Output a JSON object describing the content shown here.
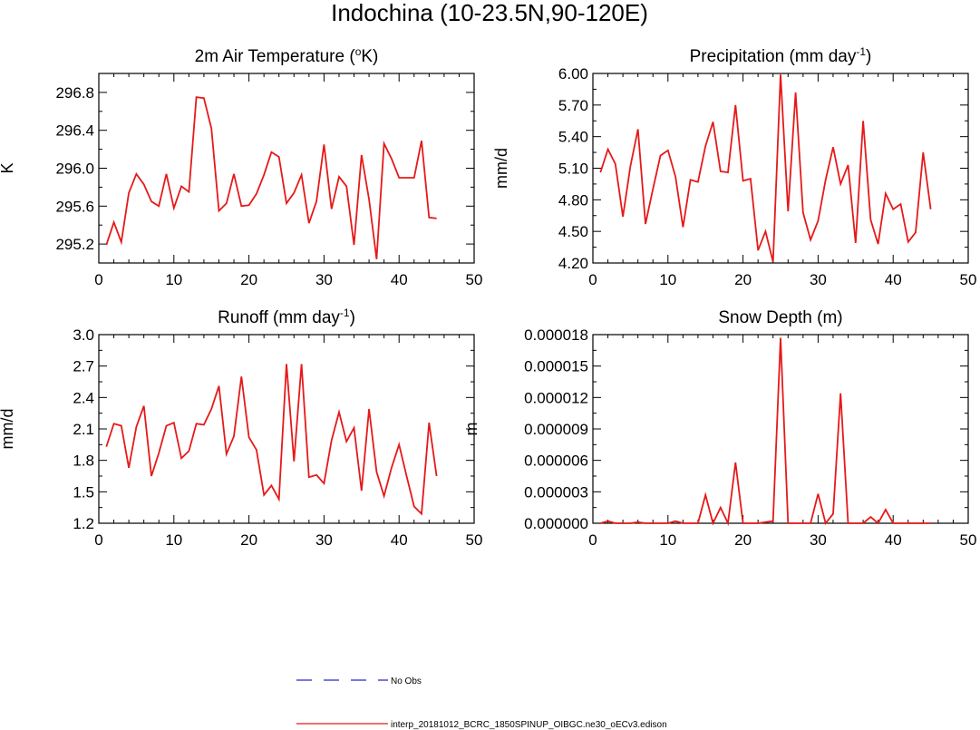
{
  "figure": {
    "title": "Indochina (10-23.5N,90-120E)"
  },
  "legend": [
    {
      "label": "No Obs",
      "color": "#2828c8",
      "dash": "dashed"
    },
    {
      "label": "interp_20181012_BCRC_1850SPINUP_OIBGC.ne30_oECv3.edison",
      "color": "#e61919",
      "dash": "solid"
    }
  ],
  "chart_data": [
    {
      "type": "line",
      "title": "2m Air Temperature (",
      "title_sup": "o",
      "title_suffix": "K)",
      "ylabel": "K",
      "xlim": [
        0,
        50
      ],
      "ylim": [
        295.0,
        297.0
      ],
      "xticks": [
        0,
        10,
        20,
        30,
        40,
        50
      ],
      "xtick_labels": [
        "0",
        "10",
        "20",
        "30",
        "40",
        "50"
      ],
      "yticks": [
        295.2,
        295.6,
        296.0,
        296.4,
        296.8
      ],
      "ytick_labels": [
        "295.2",
        "295.6",
        "296.0",
        "296.4",
        "296.8"
      ],
      "series": [
        {
          "color": "#e61919",
          "x": [
            1,
            2,
            3,
            4,
            5,
            6,
            7,
            8,
            9,
            10,
            11,
            12,
            13,
            14,
            15,
            16,
            17,
            18,
            19,
            20,
            21,
            22,
            23,
            24,
            25,
            26,
            27,
            28,
            29,
            30,
            31,
            32,
            33,
            34,
            35,
            36,
            37,
            38,
            39,
            40,
            41,
            42,
            43,
            44,
            45
          ],
          "values": [
            295.19,
            295.43,
            295.22,
            295.74,
            295.94,
            295.83,
            295.65,
            295.6,
            295.94,
            295.58,
            295.81,
            295.75,
            296.75,
            296.74,
            296.42,
            295.55,
            295.63,
            295.94,
            295.6,
            295.61,
            295.73,
            295.93,
            296.17,
            296.12,
            295.63,
            295.74,
            295.93,
            295.42,
            295.65,
            296.25,
            295.57,
            295.91,
            295.81,
            295.19,
            296.14,
            295.67,
            295.04,
            296.26,
            296.1,
            295.9,
            295.9,
            295.9,
            296.29,
            295.48,
            295.47
          ]
        }
      ]
    },
    {
      "type": "line",
      "title": "Precipitation (mm day",
      "title_sup": "-1",
      "title_suffix": ")",
      "ylabel": "mm/d",
      "xlim": [
        0,
        50
      ],
      "ylim": [
        4.2,
        6.0
      ],
      "xticks": [
        0,
        10,
        20,
        30,
        40,
        50
      ],
      "xtick_labels": [
        "0",
        "10",
        "20",
        "30",
        "40",
        "50"
      ],
      "yticks": [
        4.2,
        4.5,
        4.8,
        5.1,
        5.4,
        5.7,
        6.0
      ],
      "ytick_labels": [
        "4.20",
        "4.50",
        "4.80",
        "5.10",
        "5.40",
        "5.70",
        "6.00"
      ],
      "series": [
        {
          "color": "#e61919",
          "x": [
            1,
            2,
            3,
            4,
            5,
            6,
            7,
            8,
            9,
            10,
            11,
            12,
            13,
            14,
            15,
            16,
            17,
            18,
            19,
            20,
            21,
            22,
            23,
            24,
            25,
            26,
            27,
            28,
            29,
            30,
            31,
            32,
            33,
            34,
            35,
            36,
            37,
            38,
            39,
            40,
            41,
            42,
            43,
            44,
            45
          ],
          "values": [
            5.06,
            5.28,
            5.14,
            4.64,
            5.12,
            5.47,
            4.57,
            4.9,
            5.22,
            5.27,
            5.02,
            4.54,
            4.99,
            4.97,
            5.31,
            5.54,
            5.07,
            5.06,
            5.7,
            4.98,
            5.0,
            4.32,
            4.5,
            4.21,
            5.99,
            4.69,
            5.82,
            4.68,
            4.42,
            4.6,
            4.99,
            5.3,
            4.95,
            5.13,
            4.39,
            5.55,
            4.61,
            4.38,
            4.86,
            4.71,
            4.76,
            4.4,
            4.49,
            5.25,
            4.71
          ]
        }
      ]
    },
    {
      "type": "line",
      "title": "Runoff (mm day",
      "title_sup": "-1",
      "title_suffix": ")",
      "ylabel": "mm/d",
      "xlim": [
        0,
        50
      ],
      "ylim": [
        1.2,
        3.0
      ],
      "xticks": [
        0,
        10,
        20,
        30,
        40,
        50
      ],
      "xtick_labels": [
        "0",
        "10",
        "20",
        "30",
        "40",
        "50"
      ],
      "yticks": [
        1.2,
        1.5,
        1.8,
        2.1,
        2.4,
        2.7,
        3.0
      ],
      "ytick_labels": [
        "1.2",
        "1.5",
        "1.8",
        "2.1",
        "2.4",
        "2.7",
        "3.0"
      ],
      "series": [
        {
          "color": "#e61919",
          "x": [
            1,
            2,
            3,
            4,
            5,
            6,
            7,
            8,
            9,
            10,
            11,
            12,
            13,
            14,
            15,
            16,
            17,
            18,
            19,
            20,
            21,
            22,
            23,
            24,
            25,
            26,
            27,
            28,
            29,
            30,
            31,
            32,
            33,
            34,
            35,
            36,
            37,
            38,
            39,
            40,
            41,
            42,
            43,
            44,
            45
          ],
          "values": [
            1.93,
            2.15,
            2.13,
            1.73,
            2.12,
            2.32,
            1.65,
            1.87,
            2.13,
            2.16,
            1.82,
            1.89,
            2.15,
            2.14,
            2.29,
            2.51,
            1.86,
            2.03,
            2.6,
            2.02,
            1.9,
            1.47,
            1.56,
            1.43,
            2.72,
            1.79,
            2.72,
            1.64,
            1.66,
            1.58,
            1.99,
            2.26,
            1.98,
            2.11,
            1.51,
            2.29,
            1.69,
            1.46,
            1.73,
            1.95,
            1.65,
            1.36,
            1.29,
            2.16,
            1.65
          ]
        }
      ]
    },
    {
      "type": "line",
      "title": "Snow Depth (m)",
      "title_sup": "",
      "title_suffix": "",
      "ylabel": "m",
      "xlim": [
        0,
        50
      ],
      "ylim": [
        0,
        1.8e-05
      ],
      "xticks": [
        0,
        10,
        20,
        30,
        40,
        50
      ],
      "xtick_labels": [
        "0",
        "10",
        "20",
        "30",
        "40",
        "50"
      ],
      "yticks": [
        0,
        3e-06,
        6e-06,
        9e-06,
        1.2e-05,
        1.5e-05,
        1.8e-05
      ],
      "ytick_labels": [
        "0.000000",
        "0.000003",
        "0.000006",
        "0.000009",
        "0.000012",
        "0.000015",
        "0.000018"
      ],
      "series": [
        {
          "color": "#e61919",
          "x": [
            1,
            2,
            3,
            4,
            5,
            6,
            7,
            8,
            9,
            10,
            11,
            12,
            13,
            14,
            15,
            16,
            17,
            18,
            19,
            20,
            21,
            22,
            23,
            24,
            25,
            26,
            27,
            28,
            29,
            30,
            31,
            32,
            33,
            34,
            35,
            36,
            37,
            38,
            39,
            40,
            41,
            42,
            43,
            44,
            45
          ],
          "values": [
            0,
            2e-07,
            0,
            0,
            0,
            1e-07,
            0,
            0,
            0,
            0,
            2e-07,
            0,
            0,
            0,
            2.7e-06,
            0,
            1.5e-06,
            0,
            5.8e-06,
            0,
            0,
            0,
            1e-07,
            2e-07,
            1.77e-05,
            0,
            0,
            0,
            0,
            2.8e-06,
            0,
            9e-07,
            1.24e-05,
            0,
            0,
            0,
            6e-07,
            0,
            1.3e-06,
            0,
            0,
            0,
            0,
            0,
            0
          ]
        }
      ]
    }
  ]
}
